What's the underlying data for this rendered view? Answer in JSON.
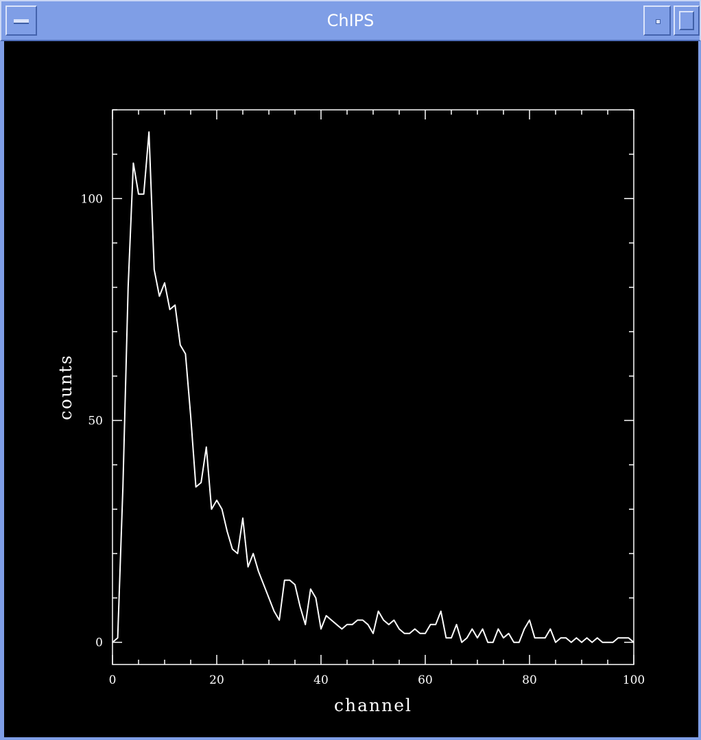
{
  "window": {
    "title": "ChIPS"
  },
  "chart_data": {
    "type": "line",
    "title": "",
    "xlabel": "channel",
    "ylabel": "counts",
    "xlim": [
      0,
      100
    ],
    "ylim": [
      -5,
      120
    ],
    "x_ticks": [
      0,
      20,
      40,
      60,
      80,
      100
    ],
    "y_ticks": [
      0,
      50,
      100
    ],
    "grid": false,
    "line_color": "#ffffff",
    "background": "#000000",
    "series": [
      {
        "x": [
          0,
          1,
          2,
          3,
          4,
          5,
          6,
          7,
          8,
          9,
          10,
          11,
          12,
          13,
          14,
          15,
          16,
          17,
          18,
          19,
          20,
          21,
          22,
          23,
          24,
          25,
          26,
          27,
          28,
          29,
          30,
          31,
          32,
          33,
          34,
          35,
          36,
          37,
          38,
          39,
          40,
          41,
          42,
          43,
          44,
          45,
          46,
          47,
          48,
          49,
          50,
          51,
          52,
          53,
          54,
          55,
          56,
          57,
          58,
          59,
          60,
          61,
          62,
          63,
          64,
          65,
          66,
          67,
          68,
          69,
          70,
          71,
          72,
          73,
          74,
          75,
          76,
          77,
          78,
          79,
          80,
          81,
          82,
          83,
          84,
          85,
          86,
          87,
          88,
          89,
          90,
          91,
          92,
          93,
          94,
          95,
          96,
          97,
          98,
          99,
          100
        ],
        "y": [
          0,
          1,
          35,
          80,
          108,
          101,
          101,
          115,
          84,
          78,
          81,
          75,
          76,
          67,
          65,
          51,
          35,
          36,
          44,
          30,
          32,
          30,
          25,
          21,
          20,
          28,
          17,
          20,
          16,
          13,
          10,
          7,
          5,
          14,
          14,
          13,
          8,
          4,
          12,
          10,
          3,
          6,
          5,
          4,
          3,
          4,
          4,
          5,
          5,
          4,
          2,
          7,
          5,
          4,
          5,
          3,
          2,
          2,
          3,
          2,
          2,
          4,
          4,
          7,
          1,
          1,
          4,
          0,
          1,
          3,
          1,
          3,
          0,
          0,
          3,
          1,
          2,
          0,
          0,
          3,
          5,
          1,
          1,
          1,
          3,
          0,
          1,
          1,
          0,
          1,
          0,
          1,
          0,
          1,
          0,
          0,
          0,
          1,
          1,
          1,
          0
        ]
      }
    ]
  }
}
